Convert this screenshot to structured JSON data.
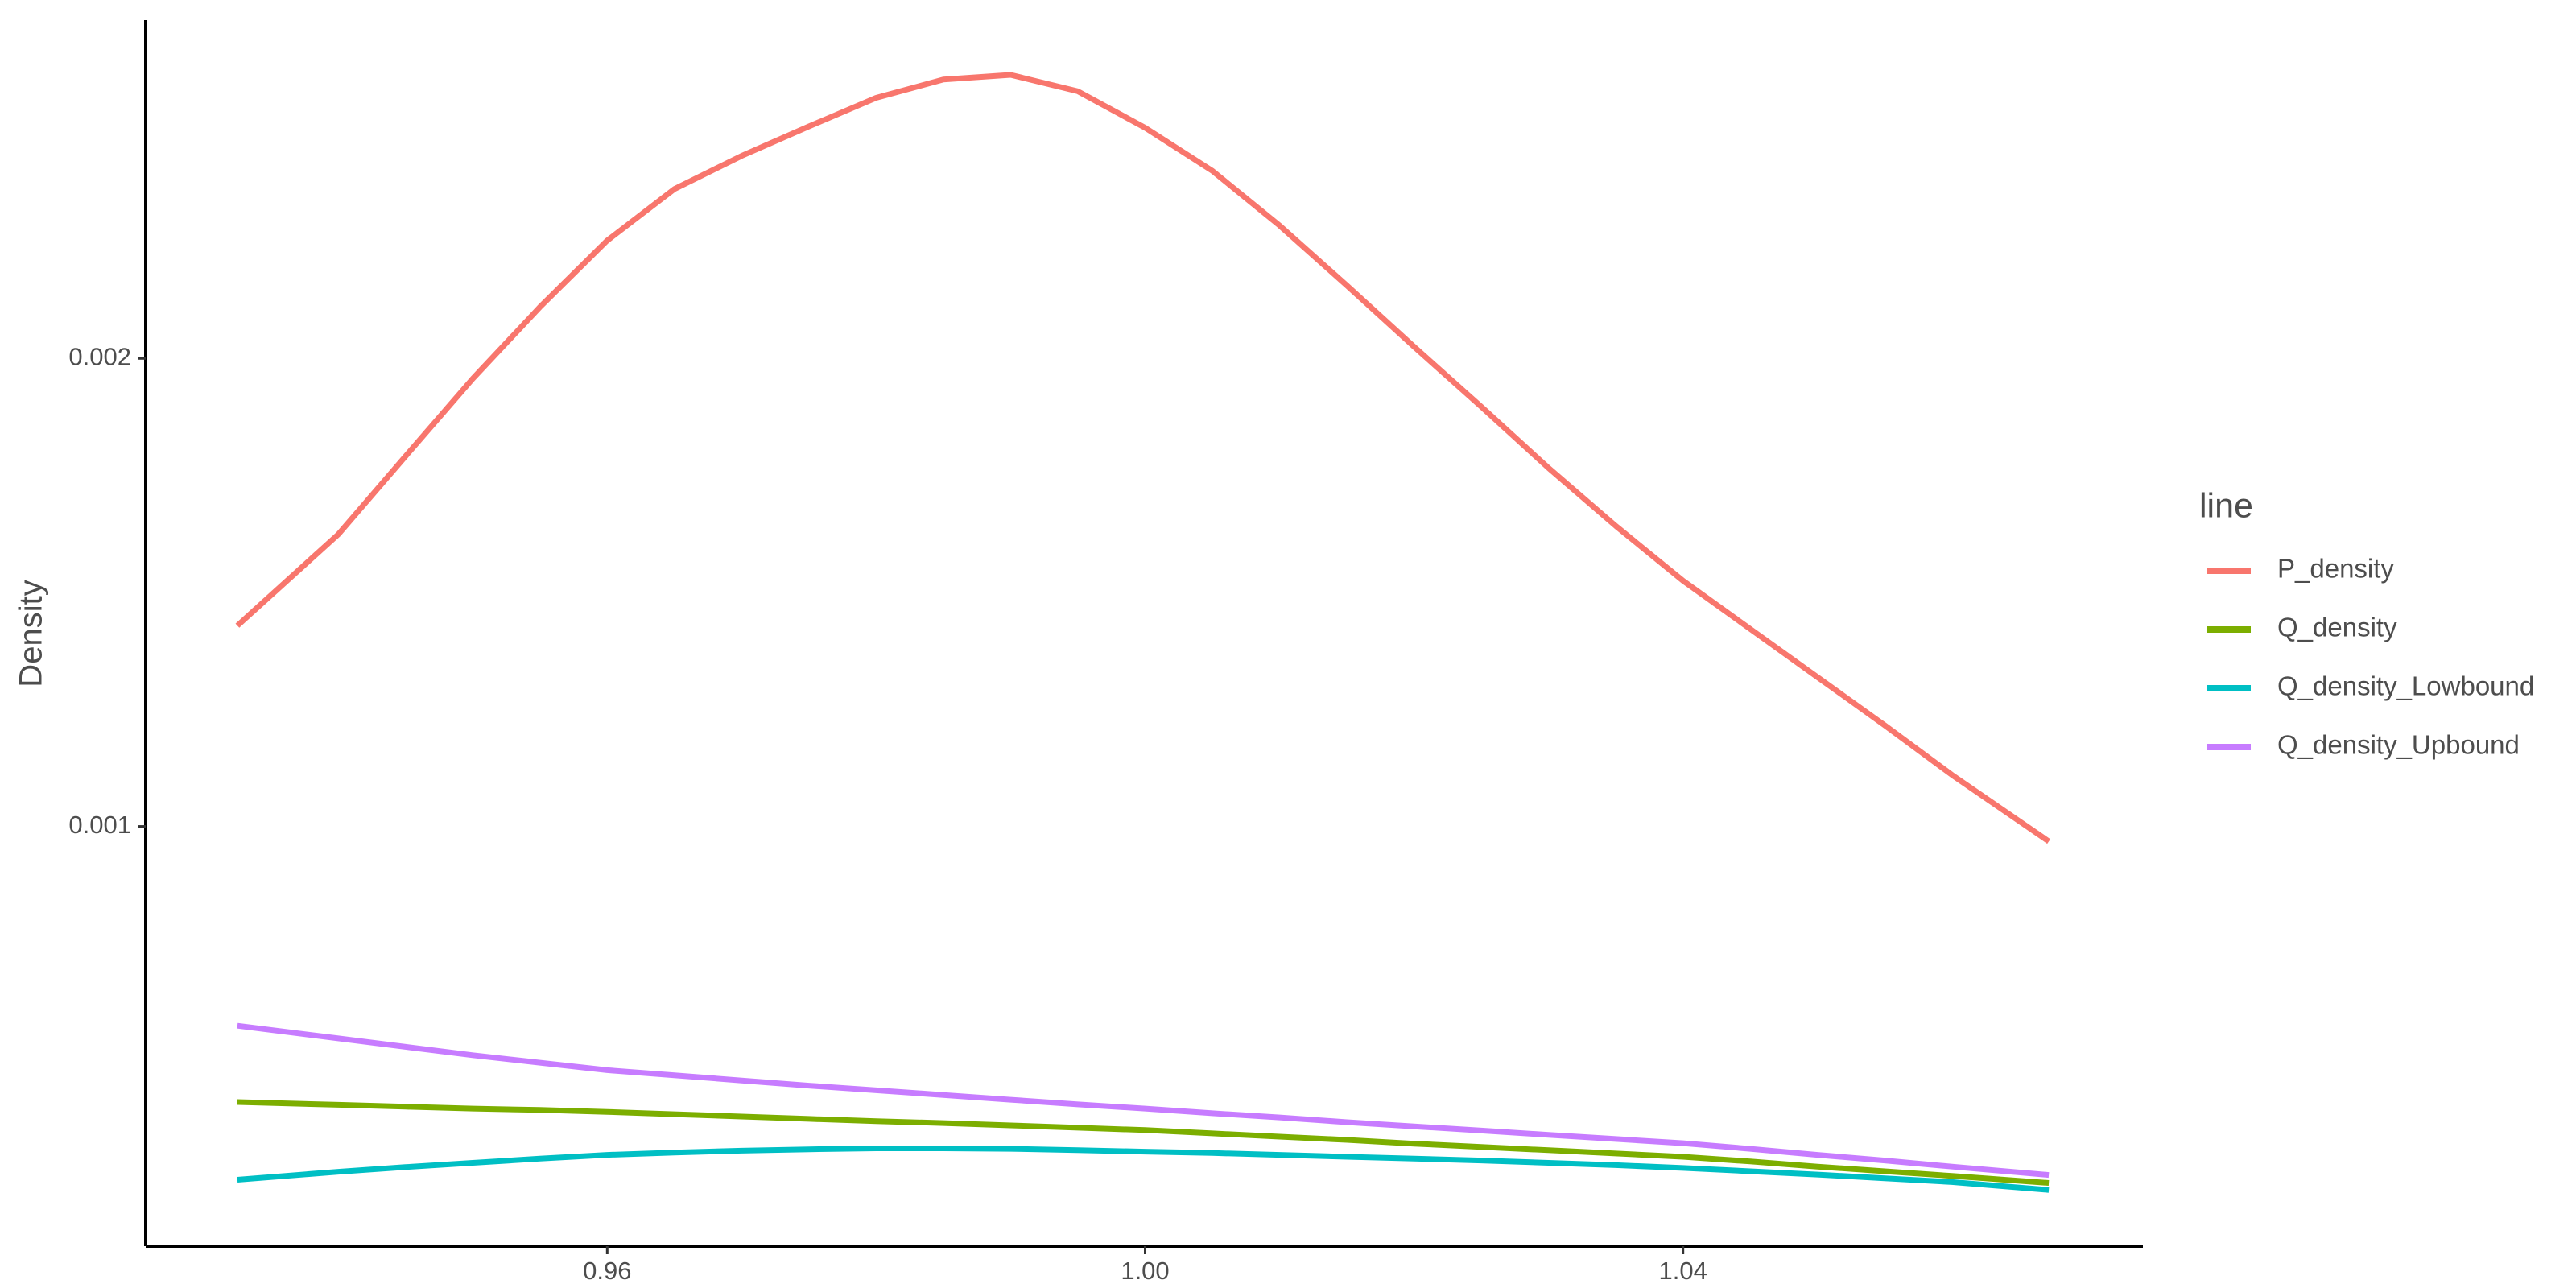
{
  "chart_data": {
    "type": "line",
    "y_label": "Density",
    "legend_title": "line",
    "legend": "right",
    "grid": false,
    "x": [
      0.9325,
      0.94,
      0.945,
      0.95,
      0.955,
      0.96,
      0.965,
      0.97,
      0.975,
      0.98,
      0.985,
      0.99,
      0.995,
      1.0,
      1.005,
      1.01,
      1.015,
      1.02,
      1.025,
      1.03,
      1.035,
      1.04,
      1.045,
      1.05,
      1.055,
      1.06,
      1.0672
    ],
    "series": [
      {
        "name": "P_density",
        "color": "#F8766D",
        "values": [
          0.001429,
          0.001624,
          0.001791,
          0.001957,
          0.00211,
          0.002252,
          0.002362,
          0.002433,
          0.002496,
          0.002557,
          0.002596,
          0.002606,
          0.002571,
          0.002493,
          0.002401,
          0.002284,
          0.002156,
          0.002025,
          0.001897,
          0.001766,
          0.001642,
          0.001525,
          0.001422,
          0.001319,
          0.001216,
          0.00111,
          0.000968
        ]
      },
      {
        "name": "Q_density",
        "color": "#7CAE00",
        "values": [
          0.000411,
          0.000405,
          0.000401,
          0.000397,
          0.000394,
          0.00039,
          0.000385,
          0.00038,
          0.000375,
          0.00037,
          0.000366,
          0.000361,
          0.000356,
          0.000351,
          0.000344,
          0.000337,
          0.00033,
          0.000322,
          0.000315,
          0.000308,
          0.000301,
          0.000294,
          0.000284,
          0.000273,
          0.000263,
          0.000253,
          0.000238
        ]
      },
      {
        "name": "Q_density_Lowbound",
        "color": "#00BFC4",
        "values": [
          0.000245,
          0.000262,
          0.000272,
          0.000281,
          0.00029,
          0.000298,
          0.000303,
          0.000307,
          0.00031,
          0.000312,
          0.000312,
          0.000311,
          0.000308,
          0.000305,
          0.000302,
          0.000298,
          0.000294,
          0.00029,
          0.000286,
          0.000281,
          0.000276,
          0.00027,
          0.000263,
          0.000256,
          0.000248,
          0.00024,
          0.000223
        ]
      },
      {
        "name": "Q_density_Upbound",
        "color": "#C77CFF",
        "values": [
          0.000574,
          0.000547,
          0.000529,
          0.000511,
          0.000495,
          0.000479,
          0.000468,
          0.000457,
          0.000446,
          0.000436,
          0.000426,
          0.000416,
          0.000406,
          0.000397,
          0.000387,
          0.000378,
          0.000368,
          0.000359,
          0.00035,
          0.000341,
          0.000332,
          0.000323,
          0.000311,
          0.000298,
          0.000286,
          0.000273,
          0.000255
        ]
      }
    ],
    "xlim": [
      0.92568,
      1.0742
    ],
    "ylim": [
      0.000103,
      0.002723
    ],
    "xticks": [
      0.96,
      {
        "value": 1,
        "label": "1.00"
      },
      1.04
    ],
    "yticks": [
      0.001,
      0.002
    ]
  }
}
